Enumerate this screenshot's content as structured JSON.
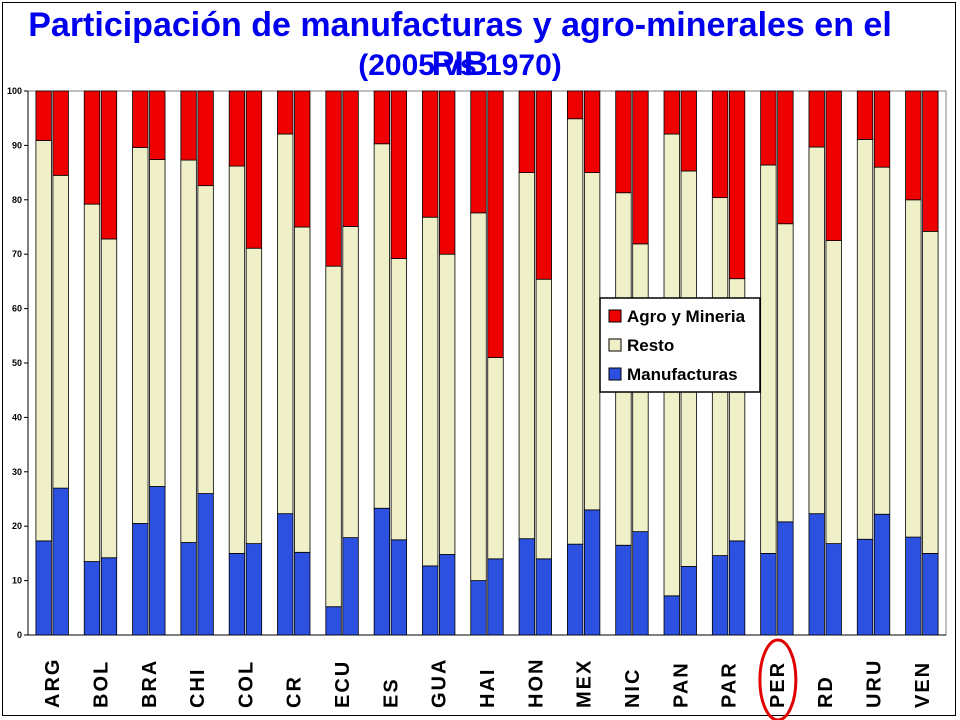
{
  "title_line1": "Participación de manufacturas y agro-minerales en el PIB",
  "title_line2": "(2005  vs  1970)",
  "colors": {
    "Agro y Mineria": "#ee0000",
    "Resto": "#efefc8",
    "Manufacturas": "#2c50e0",
    "highlight": "#e00000",
    "title": "#0000ee"
  },
  "highlight_category": "PER",
  "chart_data": {
    "type": "bar",
    "stacked": true,
    "bars_per_category": 2,
    "categories": [
      "ARG",
      "BOL",
      "BRA",
      "CHI",
      "COL",
      "CR",
      "ECU",
      "ES",
      "GUA",
      "HAI",
      "HON",
      "MEX",
      "NIC",
      "PAN",
      "PAR",
      "PER",
      "RD",
      "URU",
      "VEN"
    ],
    "ylim": [
      0,
      100
    ],
    "yticks": [
      0,
      10,
      20,
      30,
      40,
      50,
      60,
      70,
      80,
      90,
      100
    ],
    "grid": false,
    "legend_position": "center-right",
    "legend": [
      "Agro y Mineria",
      "Resto",
      "Manufacturas"
    ],
    "series": [
      {
        "name": "Manufacturas",
        "values": [
          [
            17.3,
            27.0
          ],
          [
            13.5,
            14.2
          ],
          [
            20.5,
            27.3
          ],
          [
            17.0,
            26.0
          ],
          [
            15.0,
            16.8
          ],
          [
            22.3,
            15.2
          ],
          [
            5.2,
            17.9
          ],
          [
            23.3,
            17.5
          ],
          [
            12.7,
            14.8
          ],
          [
            10.0,
            14.0
          ],
          [
            17.7,
            14.0
          ],
          [
            16.7,
            23.0
          ],
          [
            16.5,
            19.0
          ],
          [
            7.2,
            12.6
          ],
          [
            14.6,
            17.3
          ],
          [
            15.0,
            20.8
          ],
          [
            22.3,
            16.8
          ],
          [
            17.6,
            22.2
          ],
          [
            18.0,
            15.0
          ]
        ]
      },
      {
        "name": "Resto",
        "values": [
          [
            73.6,
            57.5
          ],
          [
            65.7,
            58.6
          ],
          [
            69.1,
            60.1
          ],
          [
            70.3,
            56.6
          ],
          [
            71.2,
            54.3
          ],
          [
            69.8,
            59.8
          ],
          [
            62.6,
            57.2
          ],
          [
            67.0,
            51.7
          ],
          [
            64.1,
            55.2
          ],
          [
            67.6,
            37.0
          ],
          [
            67.3,
            51.4
          ],
          [
            78.2,
            62.0
          ],
          [
            64.8,
            52.9
          ],
          [
            84.9,
            72.7
          ],
          [
            65.8,
            48.2
          ],
          [
            71.4,
            54.8
          ],
          [
            67.4,
            55.7
          ],
          [
            73.5,
            63.8
          ],
          [
            62.0,
            59.2
          ]
        ]
      },
      {
        "name": "Agro y Mineria",
        "values": [
          [
            9.1,
            15.5
          ],
          [
            20.8,
            27.2
          ],
          [
            10.4,
            12.6
          ],
          [
            12.7,
            17.4
          ],
          [
            13.8,
            28.9
          ],
          [
            7.9,
            25.0
          ],
          [
            32.2,
            24.9
          ],
          [
            9.7,
            30.8
          ],
          [
            23.2,
            30.0
          ],
          [
            22.4,
            49.0
          ],
          [
            15.0,
            34.6
          ],
          [
            5.1,
            15.0
          ],
          [
            18.7,
            28.1
          ],
          [
            7.9,
            14.7
          ],
          [
            19.6,
            34.5
          ],
          [
            13.6,
            24.4
          ],
          [
            10.3,
            27.5
          ],
          [
            8.9,
            14.0
          ],
          [
            20.0,
            25.8
          ]
        ]
      }
    ]
  }
}
